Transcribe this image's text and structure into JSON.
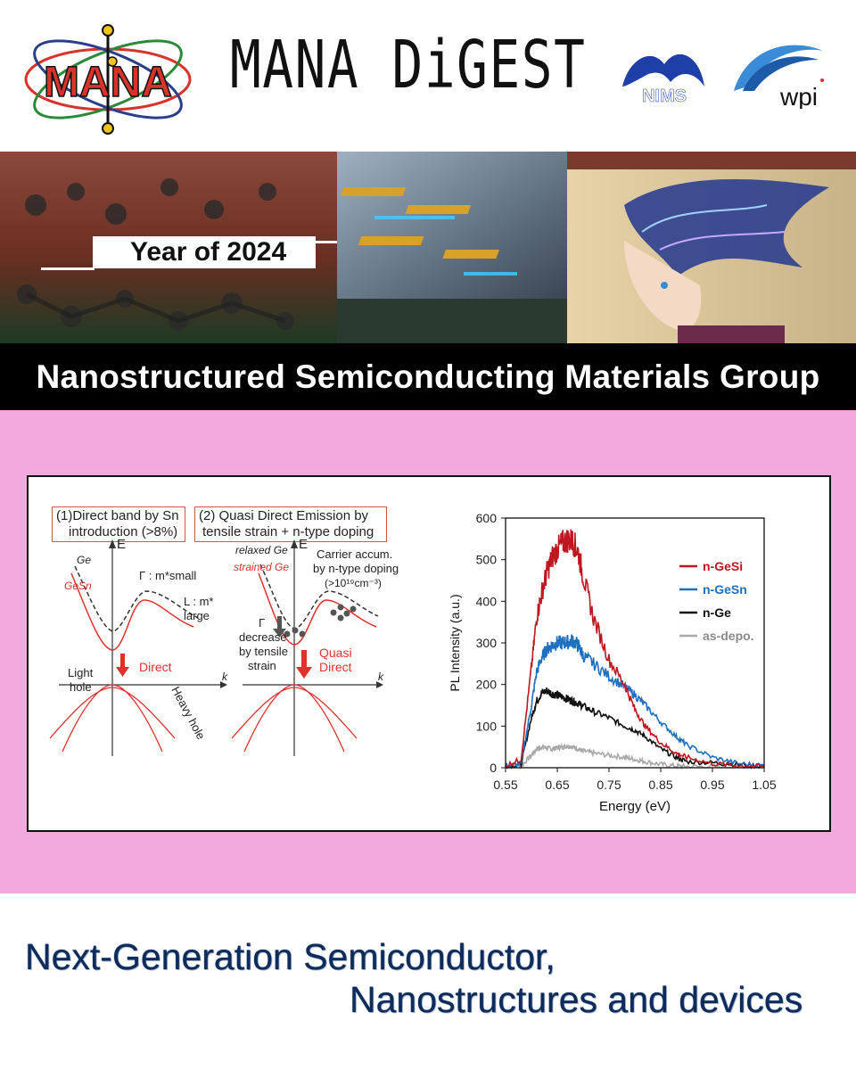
{
  "header": {
    "logo_text": "MANA",
    "title": "MANA DiGEST",
    "nims_text": "NIMS",
    "wpi_text": "wpi"
  },
  "banner": {
    "year_label": "Year of 2024"
  },
  "group": {
    "title": "Nanostructured Semiconducting Materials Group"
  },
  "band_diagram": {
    "label1_line1": "(1)Direct band by Sn",
    "label1_line2": "introduction (>8%)",
    "label2_line1": "(2) Quasi Direct Emission by",
    "label2_line2": "tensile strain + n-type doping",
    "left": {
      "ge": "Ge",
      "gesn": "GeSn",
      "e_axis": "E",
      "gamma": "Γ : m*small",
      "l_line1": "L : m*",
      "l_line2": "large",
      "direct": "Direct",
      "light_hole_1": "Light",
      "light_hole_2": "hole",
      "heavy_hole": "Heavy hole",
      "k_axis": "k"
    },
    "right": {
      "relaxed": "relaxed Ge",
      "strained": "strained Ge",
      "e_axis": "E",
      "carrier_1": "Carrier accum.",
      "carrier_2": "by n-type doping",
      "carrier_3": "(>10¹⁹cm⁻³)",
      "gamma_1": "Γ",
      "gamma_2": "decrease",
      "gamma_3": "by tensile",
      "gamma_4": "strain",
      "quasi_1": "Quasi",
      "quasi_2": "Direct",
      "k_axis": "k"
    },
    "colors": {
      "red": "#e0312d",
      "dark": "#333333"
    }
  },
  "chart_data": {
    "type": "line",
    "xlabel": "Energy (eV)",
    "ylabel": "PL Intensity (a.u.)",
    "xlim": [
      0.55,
      1.05
    ],
    "ylim": [
      0,
      600
    ],
    "x_ticks": [
      "0.55",
      "0.65",
      "0.75",
      "0.85",
      "0.95",
      "1.05"
    ],
    "y_ticks": [
      "0",
      "100",
      "200",
      "300",
      "400",
      "500",
      "600"
    ],
    "legend_position": "right",
    "x": [
      0.55,
      0.58,
      0.6,
      0.61,
      0.62,
      0.63,
      0.64,
      0.65,
      0.66,
      0.67,
      0.68,
      0.69,
      0.7,
      0.72,
      0.75,
      0.78,
      0.8,
      0.82,
      0.85,
      0.88,
      0.9,
      0.95,
      1.0,
      1.05
    ],
    "series": [
      {
        "name": "n-GeSi",
        "color": "#c0161f",
        "values": [
          5,
          20,
          240,
          360,
          420,
          470,
          505,
          525,
          540,
          548,
          545,
          520,
          460,
          360,
          260,
          200,
          140,
          100,
          60,
          35,
          25,
          10,
          5,
          3
        ]
      },
      {
        "name": "n-GeSn",
        "color": "#1f6fbf",
        "values": [
          3,
          10,
          150,
          230,
          265,
          285,
          295,
          300,
          300,
          302,
          305,
          295,
          270,
          250,
          220,
          195,
          175,
          150,
          110,
          75,
          55,
          25,
          10,
          5
        ]
      },
      {
        "name": "n-Ge",
        "color": "#111111",
        "values": [
          3,
          8,
          120,
          160,
          180,
          185,
          178,
          175,
          170,
          165,
          160,
          155,
          148,
          135,
          120,
          100,
          90,
          75,
          45,
          25,
          15,
          12,
          8,
          3
        ]
      },
      {
        "name": "as-depo.",
        "color": "#a9a9a9",
        "values": [
          2,
          4,
          30,
          45,
          50,
          48,
          45,
          48,
          50,
          52,
          50,
          45,
          40,
          35,
          30,
          25,
          20,
          15,
          8,
          4,
          3,
          2,
          1,
          1
        ]
      }
    ]
  },
  "footer": {
    "line1": "Next-Generation Semiconductor,",
    "line2": "Nanostructures and devices"
  }
}
